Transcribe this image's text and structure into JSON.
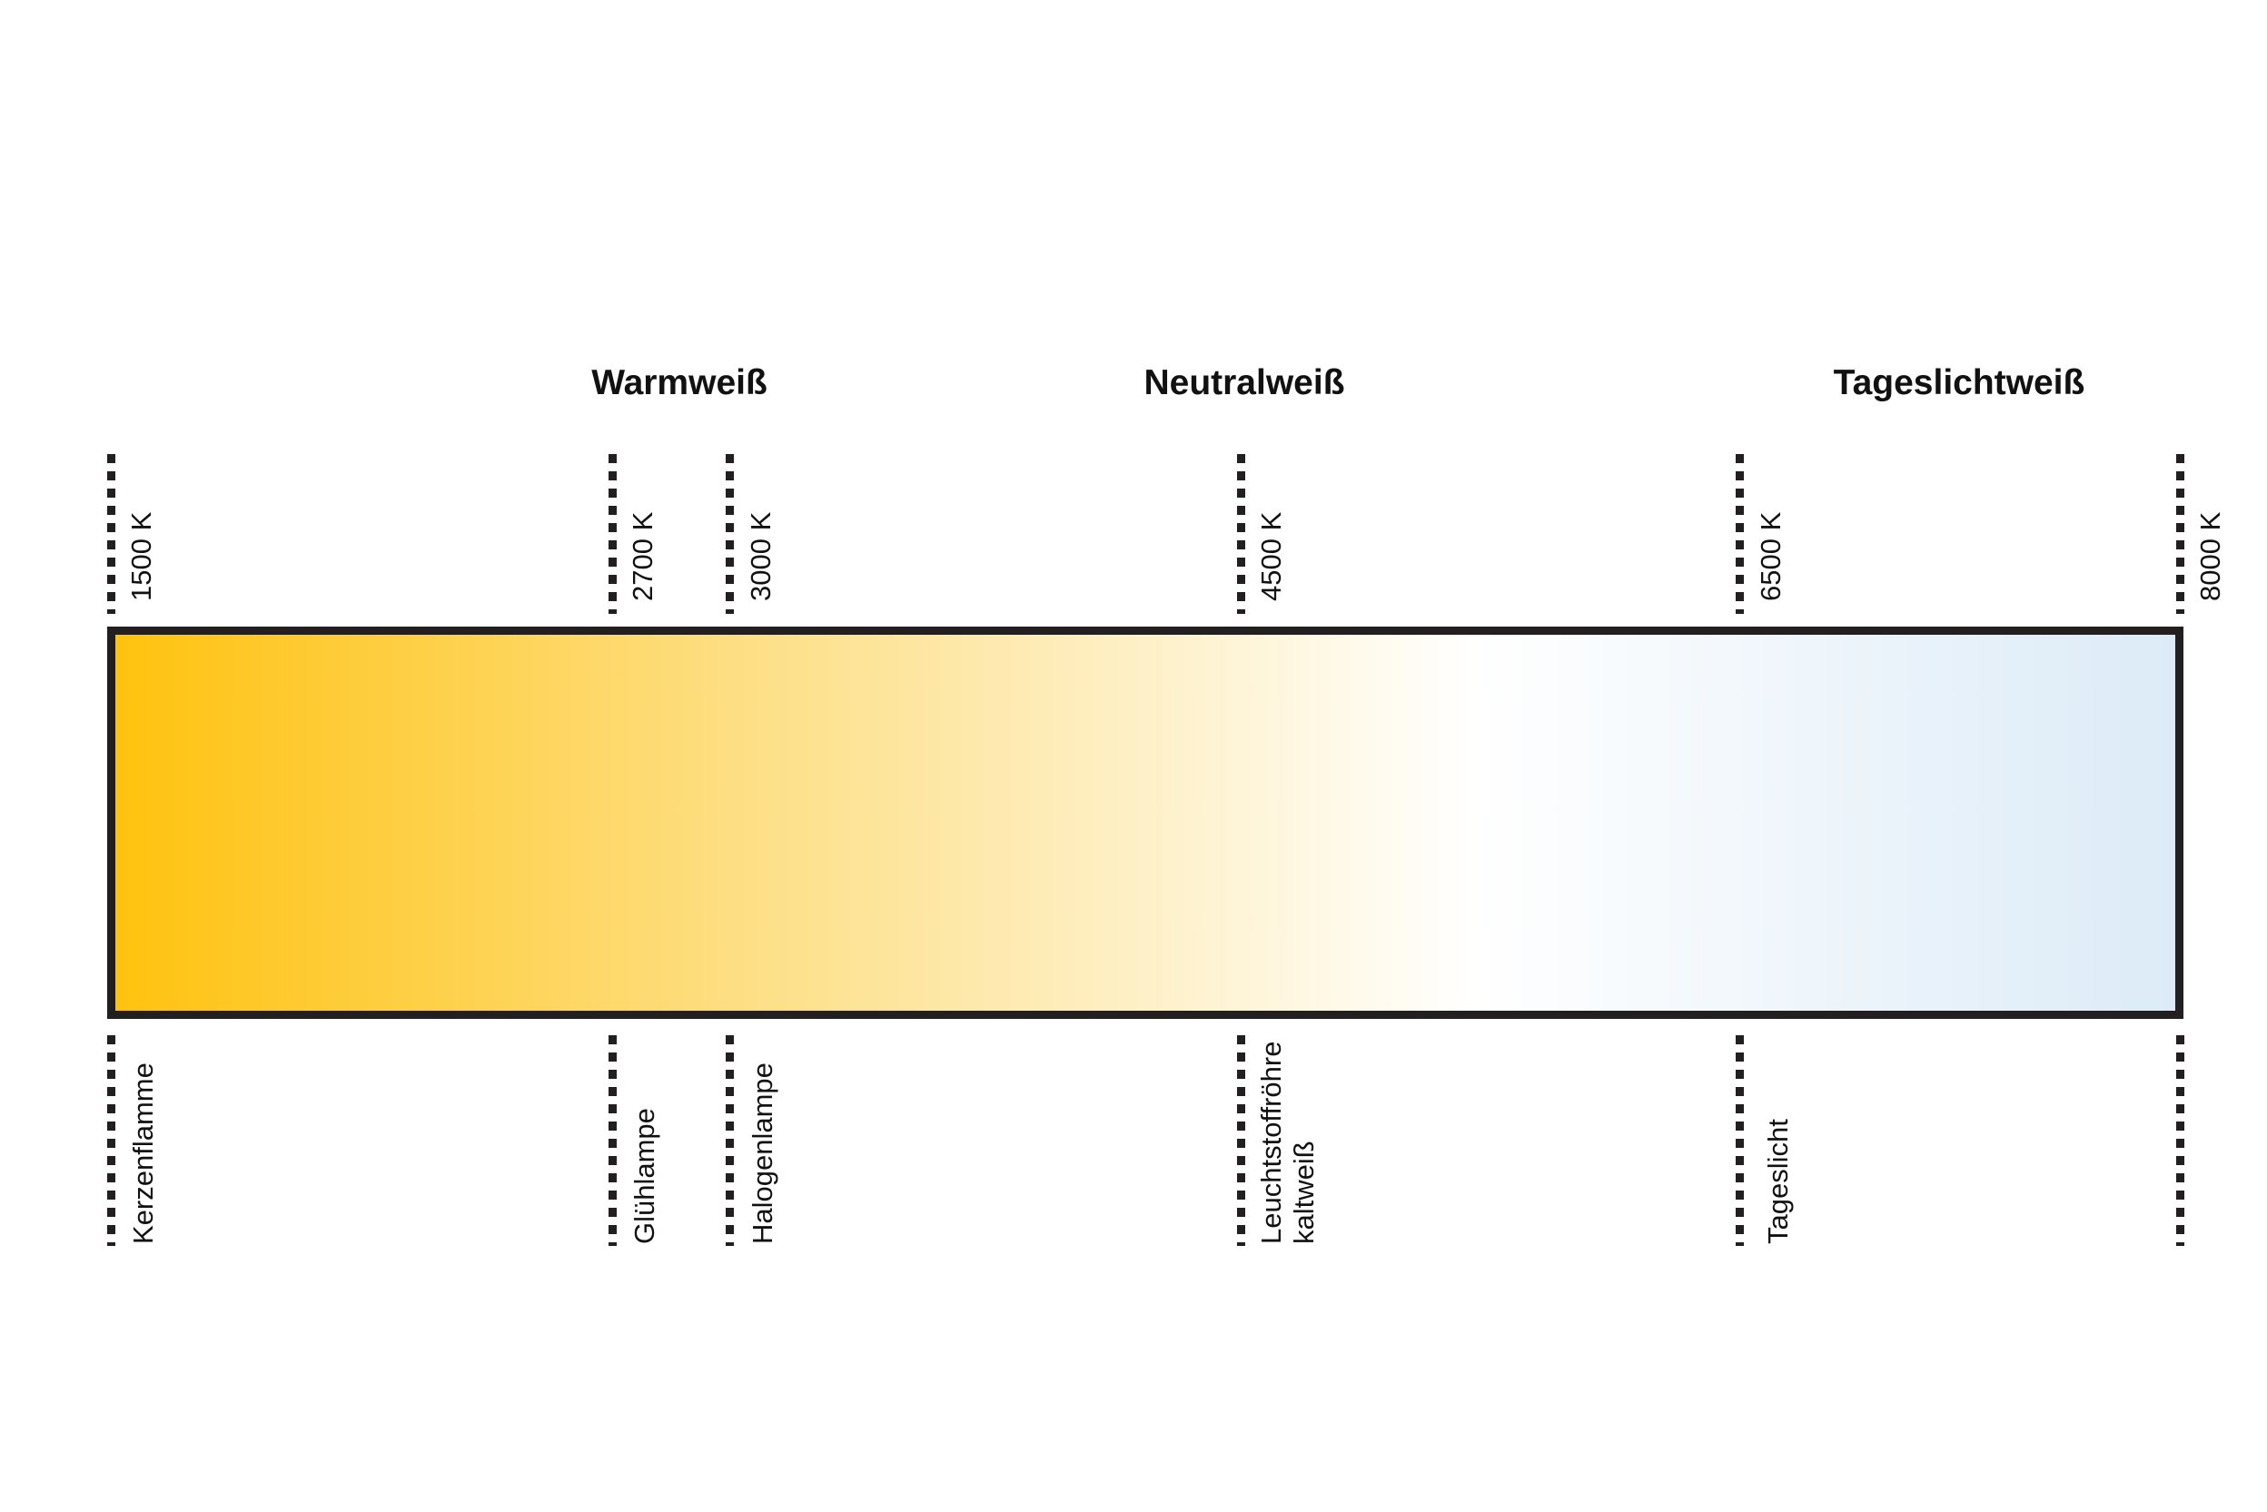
{
  "categories": {
    "warm": "Warmweiß",
    "neutral": "Neutralweiß",
    "daylight": "Tageslichtweiß"
  },
  "markers": [
    {
      "kelvin": "1500 K",
      "source": "Kerzenflamme"
    },
    {
      "kelvin": "2700 K",
      "source": "Glühlampe"
    },
    {
      "kelvin": "3000 K",
      "source": "Halogenlampe"
    },
    {
      "kelvin": "4500 K",
      "source": "Leuchtstoffröhre\nkaltweiß"
    },
    {
      "kelvin": "6500 K",
      "source": "Tageslicht"
    },
    {
      "kelvin": "8000 K",
      "source": ""
    }
  ],
  "gradient": {
    "start": "#ffc20e",
    "mid_warm": "#fde08a",
    "neutral": "#ffffff",
    "end": "#dcebf7",
    "border": "#231f20"
  }
}
